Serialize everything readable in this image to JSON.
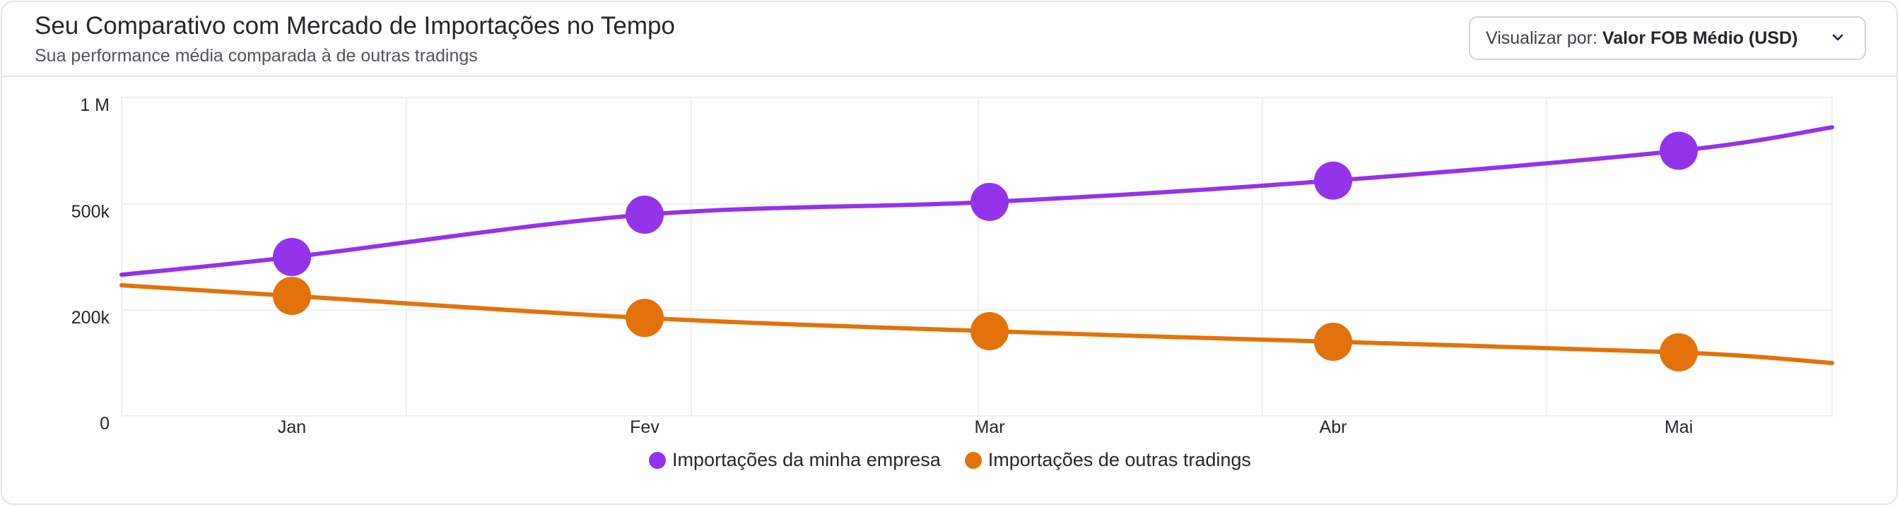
{
  "header": {
    "title": "Seu Comparativo com Mercado de Importações no Tempo",
    "subtitle": "Sua performance média comparada à de outras tradings"
  },
  "view_select": {
    "prefix": "Visualizar por: ",
    "value": "Valor FOB Médio (USD)",
    "icon": "chevron-down-icon"
  },
  "chart_data": {
    "type": "line",
    "categories": [
      "Jan",
      "Fev",
      "Mar",
      "Abr",
      "Mai"
    ],
    "y_ticks": [
      {
        "value": 0,
        "label": "0"
      },
      {
        "value": 200000,
        "label": "200k"
      },
      {
        "value": 500000,
        "label": "500k"
      },
      {
        "value": 1000000,
        "label": "1 M"
      }
    ],
    "grid": true,
    "legend_position": "bottom",
    "series": [
      {
        "name": "Importações da minha empresa",
        "color": "#9333ea",
        "values": [
          350000,
          470000,
          510000,
          610000,
          750000
        ],
        "line_start": 300000,
        "line_end": 860000
      },
      {
        "name": "Importações de outras tradings",
        "color": "#e27209",
        "values": [
          240000,
          185000,
          160000,
          140000,
          120000
        ],
        "line_start": 270000,
        "line_end": 100000
      }
    ]
  }
}
